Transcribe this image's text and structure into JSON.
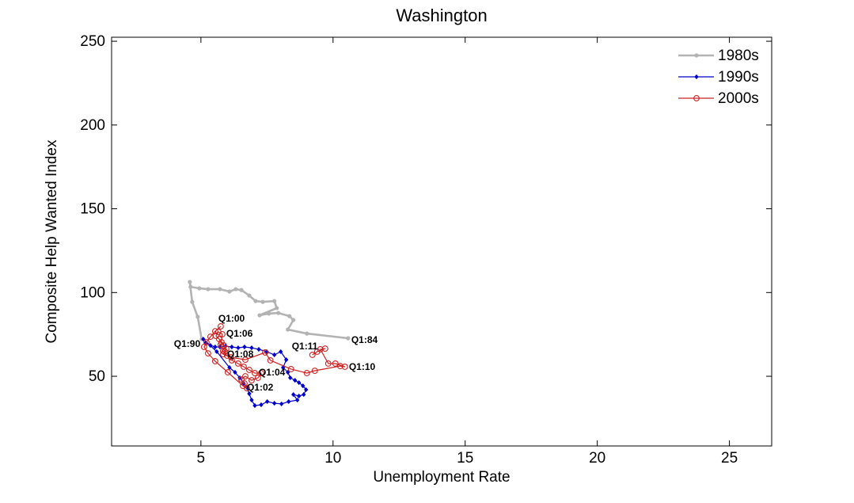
{
  "chart_data": {
    "type": "line",
    "title": "Washington",
    "xlabel": "Unemployment Rate",
    "ylabel": "Composite Help Wanted Index",
    "xlim": [
      1.62,
      26.6
    ],
    "ylim": [
      8.4,
      252.4
    ],
    "xticks": [
      5,
      10,
      15,
      20,
      25
    ],
    "yticks": [
      50,
      100,
      150,
      200,
      250
    ],
    "grid": false,
    "legend_position": "top-right",
    "series": [
      {
        "name": "1980s",
        "color": "#b3b3b3",
        "marker": "dot",
        "line_width": 2.6,
        "points": [
          [
            10.57,
            72.7
          ],
          [
            9.01,
            75.5
          ],
          [
            8.29,
            77.9
          ],
          [
            8.5,
            83.6
          ],
          [
            8.35,
            85.9
          ],
          [
            7.93,
            87.8
          ],
          [
            7.57,
            87.4
          ],
          [
            7.22,
            86.4
          ],
          [
            7.87,
            90.7
          ],
          [
            7.78,
            94.9
          ],
          [
            7.34,
            94.4
          ],
          [
            7.07,
            94.9
          ],
          [
            6.83,
            98.2
          ],
          [
            6.53,
            101.5
          ],
          [
            6.32,
            102.0
          ],
          [
            6.08,
            100.6
          ],
          [
            5.72,
            102.0
          ],
          [
            5.27,
            102.0
          ],
          [
            4.94,
            102.5
          ],
          [
            4.61,
            103.4
          ],
          [
            4.58,
            106.3
          ],
          [
            4.67,
            94.4
          ],
          [
            4.88,
            85.5
          ],
          [
            5.03,
            72.2
          ]
        ]
      },
      {
        "name": "1990s",
        "color": "#0000cc",
        "marker": "diamond",
        "line_width": 1.2,
        "points": [
          [
            5.18,
            69.9
          ],
          [
            5.36,
            68.4
          ],
          [
            5.54,
            67.5
          ],
          [
            5.72,
            67.5
          ],
          [
            5.93,
            68.0
          ],
          [
            6.17,
            67.5
          ],
          [
            6.41,
            67.0
          ],
          [
            6.65,
            67.5
          ],
          [
            6.92,
            67.0
          ],
          [
            7.19,
            66.1
          ],
          [
            7.49,
            64.7
          ],
          [
            7.78,
            62.8
          ],
          [
            8.02,
            64.7
          ],
          [
            8.23,
            59.9
          ],
          [
            8.11,
            55.2
          ],
          [
            8.29,
            52.4
          ],
          [
            8.38,
            49.1
          ],
          [
            8.56,
            47.6
          ],
          [
            8.71,
            46.2
          ],
          [
            8.86,
            44.3
          ],
          [
            8.98,
            42.0
          ],
          [
            8.89,
            39.1
          ],
          [
            8.71,
            38.2
          ],
          [
            8.5,
            39.1
          ],
          [
            8.65,
            35.8
          ],
          [
            8.32,
            34.9
          ],
          [
            8.05,
            33.5
          ],
          [
            7.78,
            33.9
          ],
          [
            7.51,
            34.9
          ],
          [
            7.28,
            33.0
          ],
          [
            7.04,
            32.5
          ],
          [
            6.92,
            35.8
          ],
          [
            6.83,
            39.6
          ],
          [
            6.74,
            43.4
          ],
          [
            6.62,
            45.7
          ],
          [
            6.47,
            49.1
          ],
          [
            6.29,
            52.4
          ],
          [
            6.08,
            55.2
          ],
          [
            5.6,
            64.7
          ],
          [
            5.09,
            72.2
          ]
        ]
      },
      {
        "name": "2000s",
        "color": "#cc2222",
        "marker": "open-circle",
        "line_width": 1.2,
        "points": [
          [
            5.75,
            79.8
          ],
          [
            5.54,
            76.9
          ],
          [
            5.36,
            73.6
          ],
          [
            5.21,
            70.3
          ],
          [
            5.12,
            67.5
          ],
          [
            5.27,
            63.7
          ],
          [
            5.54,
            59.0
          ],
          [
            6.02,
            52.4
          ],
          [
            6.59,
            44.3
          ],
          [
            6.74,
            42.9
          ],
          [
            6.65,
            45.7
          ],
          [
            6.53,
            48.1
          ],
          [
            6.68,
            50.0
          ],
          [
            6.92,
            47.6
          ],
          [
            7.16,
            49.1
          ],
          [
            7.28,
            51.9
          ],
          [
            7.04,
            51.9
          ],
          [
            6.83,
            53.8
          ],
          [
            6.62,
            55.7
          ],
          [
            6.41,
            57.6
          ],
          [
            6.17,
            59.5
          ],
          [
            5.99,
            62.3
          ],
          [
            5.84,
            65.1
          ],
          [
            5.75,
            68.9
          ],
          [
            5.81,
            75.1
          ],
          [
            5.66,
            76.5
          ],
          [
            5.57,
            74.1
          ],
          [
            5.69,
            72.2
          ],
          [
            5.78,
            70.3
          ],
          [
            5.87,
            68.4
          ],
          [
            5.96,
            66.5
          ],
          [
            5.9,
            64.7
          ],
          [
            5.84,
            63.2
          ],
          [
            6.14,
            61.3
          ],
          [
            6.68,
            59.9
          ],
          [
            7.43,
            64.2
          ],
          [
            7.63,
            59.5
          ],
          [
            8.41,
            54.3
          ],
          [
            9.01,
            51.9
          ],
          [
            9.31,
            53.3
          ],
          [
            10.27,
            56.1
          ],
          [
            10.45,
            55.7
          ],
          [
            10.09,
            57.6
          ],
          [
            9.82,
            57.6
          ],
          [
            9.52,
            66.1
          ],
          [
            9.7,
            66.5
          ],
          [
            9.4,
            64.7
          ],
          [
            9.22,
            62.8
          ]
        ]
      }
    ],
    "annotations": [
      {
        "text": "Q1:00",
        "x": 5.66,
        "y": 82.6
      },
      {
        "text": "Q1:06",
        "x": 5.96,
        "y": 73.6
      },
      {
        "text": "Q1:90",
        "x": 3.98,
        "y": 67.5
      },
      {
        "text": "Q1:08",
        "x": 5.99,
        "y": 61.3
      },
      {
        "text": "Q1:04",
        "x": 7.19,
        "y": 50.5
      },
      {
        "text": "Q1:02",
        "x": 6.74,
        "y": 41.5
      },
      {
        "text": "Q1:11",
        "x": 8.44,
        "y": 66.1
      },
      {
        "text": "Q1:84",
        "x": 10.69,
        "y": 69.9
      },
      {
        "text": "Q1:10",
        "x": 10.6,
        "y": 53.8
      }
    ]
  }
}
